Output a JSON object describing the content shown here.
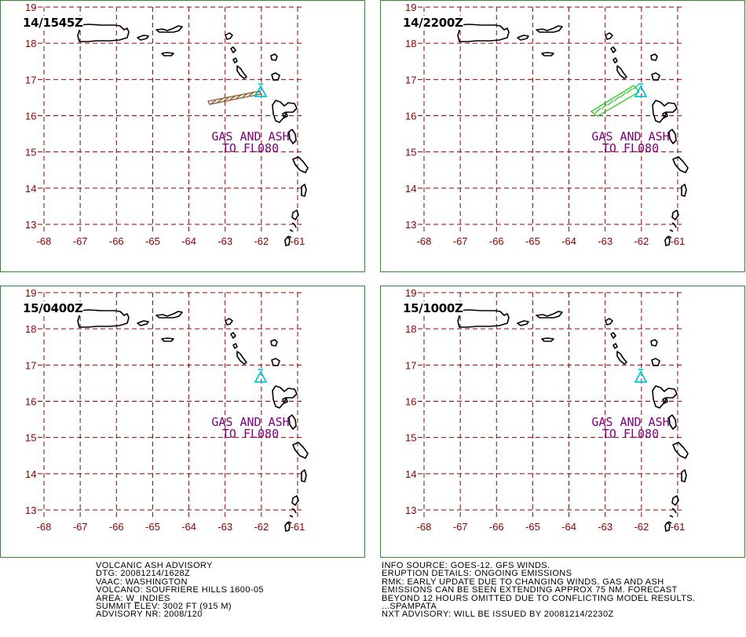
{
  "panels": [
    {
      "timestamp": "14/1545Z",
      "ash_label": [
        "GAS AND ASH",
        "TO FL080"
      ],
      "plume": "brown"
    },
    {
      "timestamp": "14/2200Z",
      "ash_label": [
        "GAS AND ASH",
        "TO FL080"
      ],
      "plume": "green"
    },
    {
      "timestamp": "15/0400Z",
      "ash_label": [
        "GAS AND ASH",
        "TO FL080"
      ],
      "plume": "none"
    },
    {
      "timestamp": "15/1000Z",
      "ash_label": [
        "GAS AND ASH",
        "TO FL080"
      ],
      "plume": "none"
    }
  ],
  "lat_ticks": [
    "19",
    "18",
    "17",
    "16",
    "15",
    "14",
    "13"
  ],
  "lon_ticks": [
    "-68",
    "-67",
    "-66",
    "-65",
    "-64",
    "-63",
    "-62",
    "-61"
  ],
  "colors": {
    "grid": "#8b0000",
    "ash_label": "#800080",
    "volcano": "#00c8d8",
    "plume_brown": "#8b5a2b",
    "plume_green": "#32cd32",
    "coast": "#000000",
    "frame": "#2e8b2e"
  },
  "volcano_icon": "triangle-icon",
  "advisory_left": [
    "VOLCANIC ASH ADVISORY",
    "DTG: 20081214/1628Z",
    "VAAC: WASHINGTON",
    "VOLCANO: SOUFRIERE HILLS 1600-05",
    "AREA: W_INDIES",
    "SUMMIT ELEV: 3002 FT (915 M)",
    "ADVISORY NR: 2008/120"
  ],
  "advisory_right": [
    "INFO SOURCE: GOES-12. GFS WINDS.",
    "ERUPTION DETAILS: ONGOING EMISSIONS",
    "RMK: EARLY UPDATE DUE TO CHANGING WINDS. GAS AND ASH",
    "EMISSIONS CAN BE SEEN EXTENDING APPROX 75 NM. FORECAST",
    "BEYOND 12 HOURS OMITTED DUE TO CONFLICTING MODEL RESULTS.",
    "...SPAMPATA",
    "NXT ADVISORY: WILL BE ISSUED BY 20081214/2230Z"
  ]
}
